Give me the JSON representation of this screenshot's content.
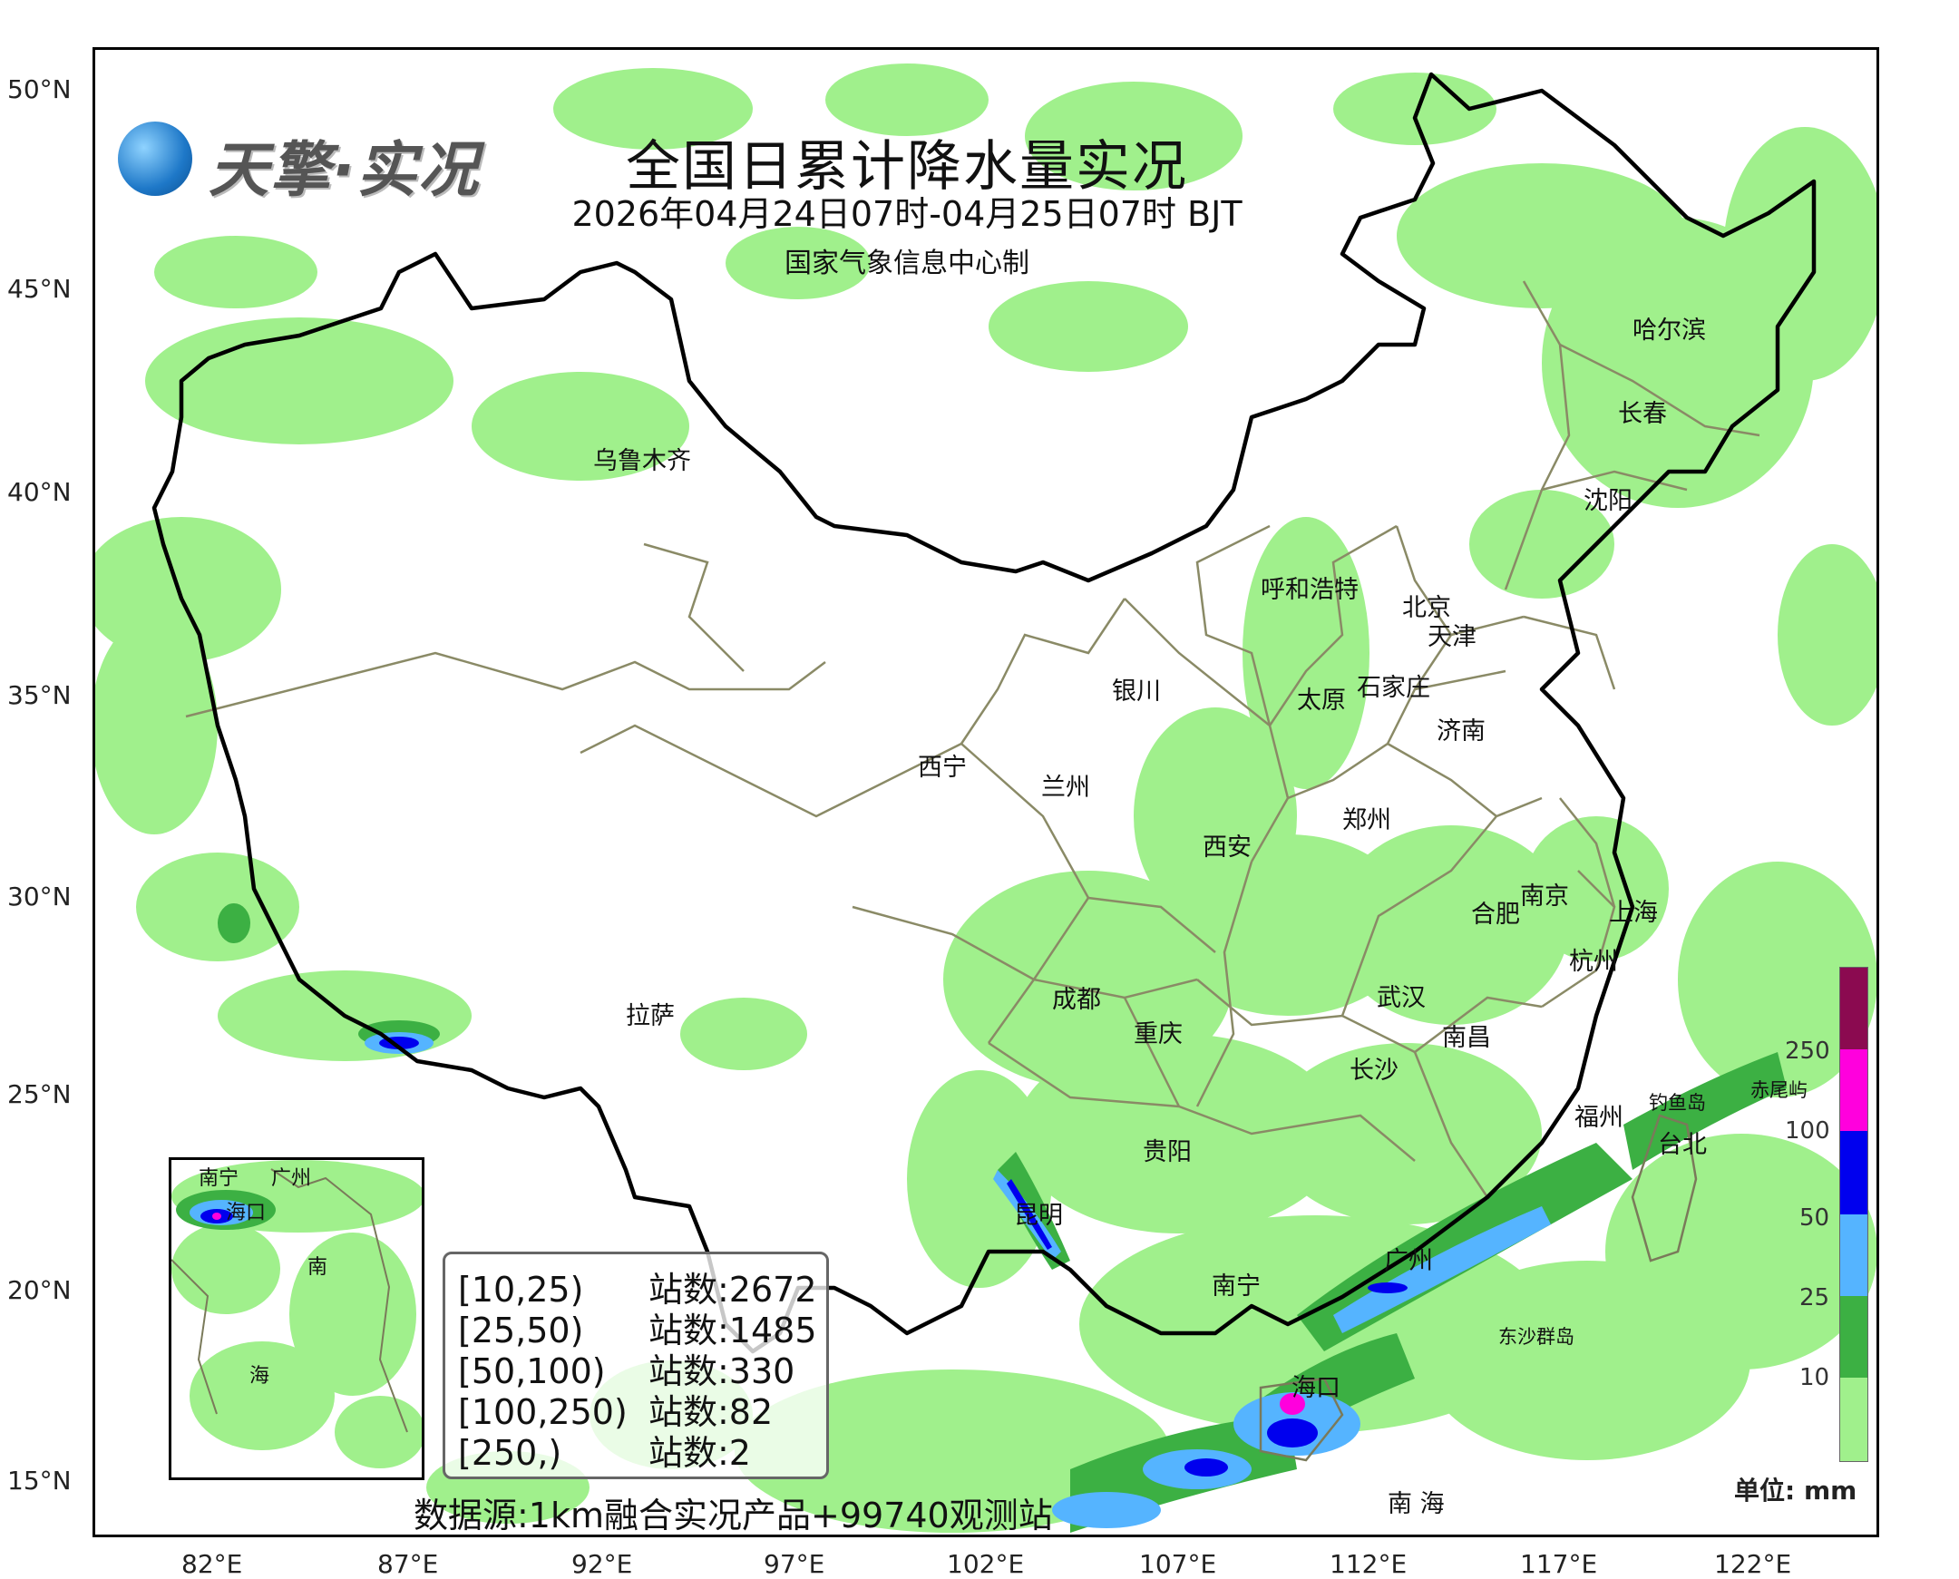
{
  "header": {
    "title": "全国日累计降水量实况",
    "time_range": "2026年04月24日07时-04月25日07时 BJT",
    "producer": "国家气象信息中心制"
  },
  "logo": {
    "text": "天擎·实况",
    "icon": "globe-network-icon"
  },
  "axes": {
    "latitudes": [
      "50°N",
      "45°N",
      "40°N",
      "35°N",
      "30°N",
      "25°N",
      "20°N",
      "15°N"
    ],
    "longitudes": [
      "82°E",
      "87°E",
      "92°E",
      "97°E",
      "102°E",
      "107°E",
      "112°E",
      "117°E",
      "122°E"
    ]
  },
  "cities": {
    "harbin": "哈尔滨",
    "changchun": "长春",
    "shenyang": "沈阳",
    "urumqi": "乌鲁木齐",
    "hohhot": "呼和浩特",
    "beijing": "北京",
    "tianjin": "天津",
    "yinchuan": "银川",
    "shijiazhuang": "石家庄",
    "taiyuan": "太原",
    "jinan": "济南",
    "xining": "西宁",
    "lanzhou": "兰州",
    "zhengzhou": "郑州",
    "xian": "西安",
    "nanjing": "南京",
    "hefei": "合肥",
    "shanghai": "上海",
    "hangzhou": "杭州",
    "lhasa": "拉萨",
    "chengdu": "成都",
    "wuhan": "武汉",
    "chongqing": "重庆",
    "nanchang": "南昌",
    "changsha": "长沙",
    "fuzhou": "福州",
    "diaoyudao": "钓鱼岛",
    "chiweiyu": "赤尾屿",
    "taipei": "台北",
    "guiyang": "贵阳",
    "kunming": "昆明",
    "guangzhou": "广州",
    "nanning": "南宁",
    "dongsha": "东沙群岛",
    "haikou": "海口",
    "nanhai": "南 海"
  },
  "inset": {
    "cities": {
      "nanning": "南宁",
      "guangzhou": "广州",
      "haikou": "海口"
    },
    "sea_label_1": "南",
    "sea_label_2": "海"
  },
  "stats": [
    {
      "range": "[10,25)",
      "count": "站数:2672"
    },
    {
      "range": "[25,50)",
      "count": "站数:1485"
    },
    {
      "range": "[50,100)",
      "count": "站数:330"
    },
    {
      "range": "[100,250)",
      "count": "站数:82"
    },
    {
      "range": "[250,)",
      "count": "站数:2"
    }
  ],
  "source": "数据源:1km融合实况产品+99740观测站",
  "legend": {
    "unit": "单位: mm",
    "labels": [
      "250",
      "100",
      "50",
      "25",
      "10"
    ],
    "colors": [
      "#8b0a50",
      "#ff00dd",
      "#0000ee",
      "#55b4ff",
      "#3cb043",
      "#a0f08c"
    ]
  }
}
